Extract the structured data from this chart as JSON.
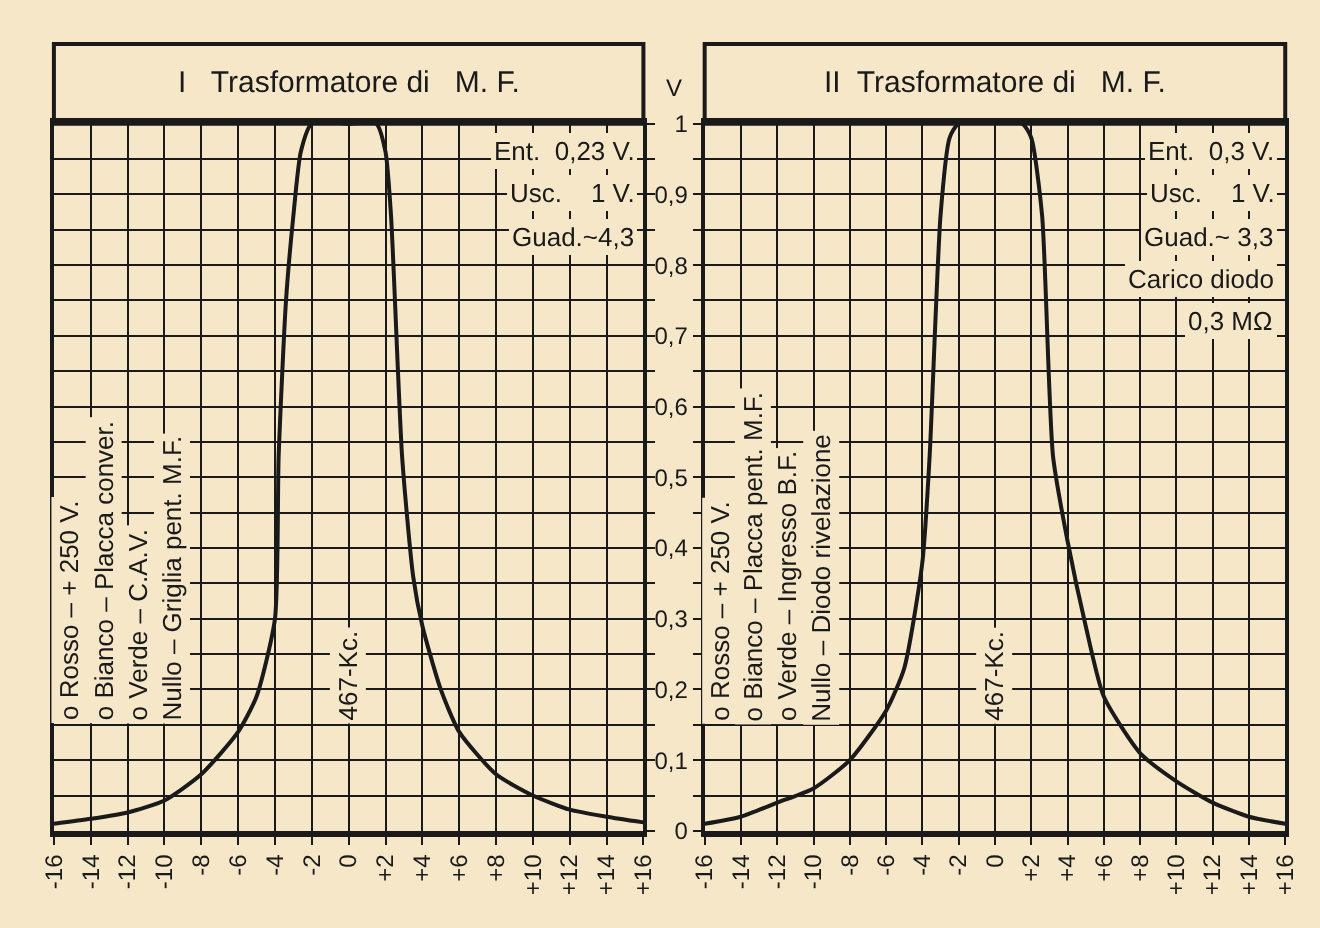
{
  "chart_data": [
    {
      "type": "line",
      "title": "I   Trasformatore di   M. F.",
      "ylabel": "V",
      "xlim": [
        -16,
        16
      ],
      "ylim": [
        0,
        1
      ],
      "grid": true,
      "tick_labels": "x",
      "yticks": [
        0,
        0.05,
        0.1,
        0.15,
        0.2,
        0.25,
        0.3,
        0.35,
        0.4,
        0.45,
        0.5,
        0.55,
        0.6,
        0.65,
        0.7,
        0.75,
        0.8,
        0.85,
        0.9,
        0.95,
        1
      ],
      "xticks": [
        {
          "value": -16,
          "label": "-16"
        },
        {
          "value": -14,
          "label": "-14"
        },
        {
          "value": -12,
          "label": "-12"
        },
        {
          "value": -10,
          "label": "-10"
        },
        {
          "value": -8,
          "label": "-8"
        },
        {
          "value": -6,
          "label": "-6"
        },
        {
          "value": -4,
          "label": "-4"
        },
        {
          "value": -2,
          "label": "-2"
        },
        0,
        {
          "value": 2,
          "label": "+2"
        },
        {
          "value": 4,
          "label": "+4"
        },
        {
          "value": 6,
          "label": "+6"
        },
        {
          "value": 8,
          "label": "+8"
        },
        {
          "value": 10,
          "label": "+10"
        },
        {
          "value": 12,
          "label": "+12"
        },
        {
          "value": 14,
          "label": "+14"
        },
        {
          "value": 16,
          "label": "+16"
        }
      ],
      "series": [
        {
          "color": "#1a1a1a",
          "x": [
            -16,
            -14,
            -12,
            -10,
            -8,
            -6,
            -5,
            -4,
            -3.8,
            -3.4,
            -3,
            -2.6,
            -2,
            0,
            1.5,
            2,
            2.3,
            2.9,
            3.5,
            4,
            5,
            6,
            8,
            10,
            12,
            14,
            16
          ],
          "values": [
            0.01,
            0.017,
            0.026,
            0.043,
            0.08,
            0.14,
            0.19,
            0.3,
            0.53,
            0.75,
            0.87,
            0.96,
            1,
            1,
            1,
            0.96,
            0.87,
            0.53,
            0.36,
            0.29,
            0.2,
            0.14,
            0.08,
            0.05,
            0.03,
            0.02,
            0.012
          ]
        }
      ],
      "annotations": [
        "Ent.  0,23 V.",
        "Usc.    1 V.",
        "Guad.~4,3",
        "o Rosso – + 250 V.",
        "o Bianco – Placca conver.",
        "o Verde – C.A.V.",
        "Nullo – Griglia pent. M.F.",
        "467-Kc."
      ]
    },
    {
      "type": "line",
      "title": "II  Trasformatore di   M. F.",
      "xlim": [
        -16,
        16
      ],
      "ylim": [
        0,
        1
      ],
      "grid": true,
      "xticks": [
        {
          "value": -16,
          "label": "-16"
        },
        {
          "value": -14,
          "label": "-14"
        },
        {
          "value": -12,
          "label": "-12"
        },
        {
          "value": -10,
          "label": "-10"
        },
        {
          "value": -8,
          "label": "-8"
        },
        {
          "value": -6,
          "label": "-6"
        },
        {
          "value": -4,
          "label": "-4"
        },
        {
          "value": -2,
          "label": "-2"
        },
        0,
        {
          "value": 2,
          "label": "+2"
        },
        {
          "value": 4,
          "label": "+4"
        },
        {
          "value": 6,
          "label": "+6"
        },
        {
          "value": 8,
          "label": "+8"
        },
        {
          "value": 10,
          "label": "+10"
        },
        {
          "value": 12,
          "label": "+12"
        },
        {
          "value": 14,
          "label": "+14"
        },
        {
          "value": 16,
          "label": "+16"
        }
      ],
      "yticks": [
        0,
        {
          "value": 0.05,
          "label": null
        },
        {
          "value": 0.1,
          "label": "0,1"
        },
        {
          "value": 0.15,
          "label": null
        },
        {
          "value": 0.2,
          "label": "0,2"
        },
        {
          "value": 0.25,
          "label": null
        },
        {
          "value": 0.3,
          "label": "0,3"
        },
        {
          "value": 0.35,
          "label": null
        },
        {
          "value": 0.4,
          "label": "0,4"
        },
        {
          "value": 0.45,
          "label": null
        },
        {
          "value": 0.5,
          "label": "0,5"
        },
        {
          "value": 0.55,
          "label": null
        },
        {
          "value": 0.6,
          "label": "0,6"
        },
        {
          "value": 0.65,
          "label": null
        },
        {
          "value": 0.7,
          "label": "0,7"
        },
        {
          "value": 0.75,
          "label": null
        },
        {
          "value": 0.8,
          "label": "0,8"
        },
        {
          "value": 0.85,
          "label": null
        },
        {
          "value": 0.9,
          "label": "0,9"
        },
        {
          "value": 0.95,
          "label": null
        },
        1
      ],
      "series": [
        {
          "color": "#1a1a1a",
          "x": [
            -16,
            -14,
            -12,
            -10,
            -8,
            -6,
            -5,
            -4,
            -3.6,
            -3,
            -2.5,
            -2,
            1.5,
            2,
            2.6,
            3.2,
            4,
            5,
            6,
            8,
            10,
            12,
            14,
            16
          ],
          "values": [
            0.01,
            0.02,
            0.04,
            0.06,
            0.1,
            0.17,
            0.23,
            0.38,
            0.53,
            0.87,
            0.98,
            1,
            1,
            0.98,
            0.87,
            0.53,
            0.41,
            0.29,
            0.19,
            0.11,
            0.07,
            0.04,
            0.02,
            0.01
          ]
        }
      ],
      "annotations": [
        "Ent.  0,3 V.",
        "Usc.    1 V.",
        "Guad.~ 3,3",
        "Carico diodo",
        "0,3 MΩ",
        "o Rosso – + 250 V.",
        "o Bianco – Placca pent. M.F.",
        "o Verde – Ingresso B.F.",
        "Nullo – Diodo rivelazione",
        "467-Kc."
      ]
    }
  ]
}
